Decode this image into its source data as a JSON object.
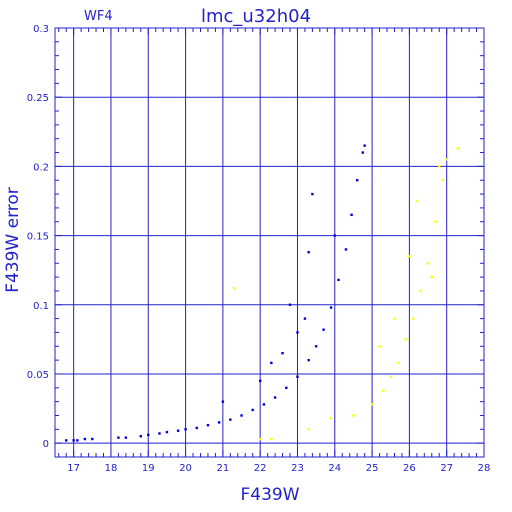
{
  "chart_data": {
    "type": "scatter",
    "title": "lmc_u32h04",
    "subtitle": "WF4",
    "xlabel": "F439W",
    "ylabel": "F439W error",
    "xlim": [
      16.5,
      28
    ],
    "ylim": [
      -0.01,
      0.3
    ],
    "xticks": [
      17,
      18,
      19,
      20,
      21,
      22,
      23,
      24,
      25,
      26,
      27,
      28
    ],
    "yticks": [
      0,
      0.05,
      0.1,
      0.15,
      0.2,
      0.25,
      0.3
    ],
    "ytick_labels": [
      "0",
      "0.05",
      "0.1",
      "0.15",
      "0.2",
      "0.25",
      "0.3"
    ],
    "grid": true,
    "colors": {
      "axis": "#2222cc",
      "grid": "#2222cc",
      "main": "#0000dd",
      "highlight": "#ffff00"
    },
    "series": [
      {
        "color": "#0000dd",
        "points": [
          [
            16.8,
            0.002
          ],
          [
            17.0,
            0.002
          ],
          [
            17.1,
            0.002
          ],
          [
            17.3,
            0.003
          ],
          [
            17.5,
            0.003
          ],
          [
            18.2,
            0.004
          ],
          [
            18.4,
            0.004
          ],
          [
            18.8,
            0.005
          ],
          [
            19.0,
            0.006
          ],
          [
            19.3,
            0.007
          ],
          [
            19.5,
            0.008
          ],
          [
            19.8,
            0.009
          ],
          [
            20.0,
            0.01
          ],
          [
            20.3,
            0.011
          ],
          [
            20.6,
            0.013
          ],
          [
            20.9,
            0.015
          ],
          [
            21.2,
            0.017
          ],
          [
            21.5,
            0.02
          ],
          [
            21.8,
            0.024
          ],
          [
            22.1,
            0.028
          ],
          [
            22.4,
            0.033
          ],
          [
            22.7,
            0.04
          ],
          [
            23.0,
            0.048
          ],
          [
            23.3,
            0.06
          ],
          [
            23.5,
            0.07
          ],
          [
            23.7,
            0.082
          ],
          [
            23.9,
            0.098
          ],
          [
            24.1,
            0.118
          ],
          [
            24.3,
            0.14
          ],
          [
            24.45,
            0.165
          ],
          [
            24.6,
            0.19
          ],
          [
            24.75,
            0.21
          ],
          [
            24.8,
            0.215
          ],
          [
            21.0,
            0.03
          ],
          [
            22.0,
            0.045
          ],
          [
            22.6,
            0.065
          ],
          [
            23.0,
            0.08
          ],
          [
            23.2,
            0.09
          ],
          [
            23.3,
            0.138
          ],
          [
            23.4,
            0.18
          ],
          [
            24.0,
            0.15
          ],
          [
            22.3,
            0.058
          ],
          [
            22.8,
            0.1
          ]
        ]
      },
      {
        "color": "#ffff00",
        "points": [
          [
            21.3,
            0.112
          ],
          [
            22.0,
            0.003
          ],
          [
            22.3,
            0.003
          ],
          [
            23.3,
            0.01
          ],
          [
            23.9,
            0.018
          ],
          [
            24.5,
            0.02
          ],
          [
            25.0,
            0.028
          ],
          [
            25.3,
            0.038
          ],
          [
            25.5,
            0.048
          ],
          [
            25.7,
            0.058
          ],
          [
            25.9,
            0.075
          ],
          [
            26.1,
            0.09
          ],
          [
            26.3,
            0.11
          ],
          [
            26.5,
            0.13
          ],
          [
            26.7,
            0.16
          ],
          [
            26.9,
            0.19
          ],
          [
            27.0,
            0.205
          ],
          [
            27.3,
            0.213
          ],
          [
            25.2,
            0.07
          ],
          [
            25.6,
            0.09
          ],
          [
            26.0,
            0.135
          ],
          [
            26.2,
            0.175
          ],
          [
            26.6,
            0.12
          ],
          [
            26.8,
            0.2
          ]
        ]
      }
    ]
  }
}
